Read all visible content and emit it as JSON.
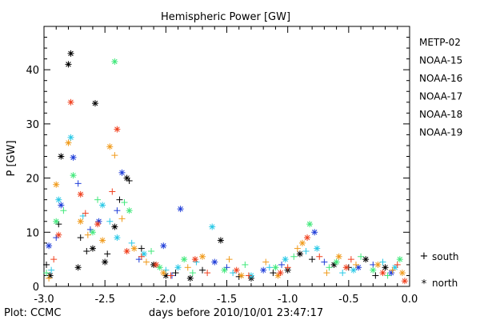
{
  "chart_data": {
    "type": "scatter",
    "title": "Hemispheric Power [GW]",
    "xlabel": "days before 2010/10/01 23:47:17",
    "ylabel": "P [GW]",
    "credit": "Plot: CCMC",
    "xlim": [
      -3.0,
      0.0
    ],
    "ylim": [
      0,
      48
    ],
    "x_ticks": [
      -3.0,
      -2.5,
      -2.0,
      -1.5,
      -1.0,
      -0.5,
      0.0
    ],
    "x_tick_labels": [
      "-3.0",
      "-2.5",
      "-2.0",
      "-1.5",
      "-1.0",
      "-0.5",
      "0.0"
    ],
    "y_ticks": [
      0,
      10,
      20,
      30,
      40
    ],
    "y_tick_labels": [
      "0",
      "10",
      "20",
      "30",
      "40"
    ],
    "grid": false,
    "legend_position": "right",
    "hemisphere_legend": {
      "south_symbol": "+",
      "south_label": "south",
      "north_symbol": "*",
      "north_label": "north"
    },
    "series": [
      {
        "name": "METP-02",
        "color": "#000000",
        "north": [
          [
            -2.78,
            43.0
          ],
          [
            -2.8,
            41.0
          ],
          [
            -2.58,
            33.8
          ],
          [
            -2.86,
            24.0
          ],
          [
            -2.6,
            7.0
          ],
          [
            -2.42,
            11.0
          ],
          [
            -2.32,
            20.0
          ],
          [
            -2.1,
            4.0
          ],
          [
            -2.0,
            2.0
          ],
          [
            -1.8,
            1.5
          ],
          [
            -1.55,
            8.5
          ],
          [
            -1.3,
            1.5
          ],
          [
            -1.0,
            3.0
          ],
          [
            -0.9,
            6.0
          ],
          [
            -0.62,
            4.0
          ],
          [
            -0.36,
            5.0
          ],
          [
            -0.2,
            3.5
          ],
          [
            -2.95,
            2.0
          ],
          [
            -2.72,
            3.5
          ],
          [
            -2.5,
            4.5
          ]
        ],
        "south": [
          [
            -2.88,
            11.5
          ],
          [
            -2.7,
            9.0
          ],
          [
            -2.48,
            6.0
          ],
          [
            -2.3,
            19.5
          ],
          [
            -2.2,
            7.0
          ],
          [
            -1.92,
            2.5
          ],
          [
            -1.7,
            3.0
          ],
          [
            -1.4,
            1.8
          ],
          [
            -1.12,
            2.5
          ],
          [
            -0.8,
            5.0
          ],
          [
            -0.5,
            3.5
          ],
          [
            -0.28,
            2.0
          ],
          [
            -2.98,
            4.0
          ],
          [
            -2.65,
            6.5
          ],
          [
            -2.38,
            16.0
          ]
        ]
      },
      {
        "name": "NOAA-15",
        "color": "#1e3cd8",
        "north": [
          [
            -2.86,
            15.0
          ],
          [
            -2.76,
            23.8
          ],
          [
            -2.36,
            21.0
          ],
          [
            -2.02,
            7.5
          ],
          [
            -1.88,
            14.3
          ],
          [
            -1.6,
            4.5
          ],
          [
            -1.2,
            3.0
          ],
          [
            -0.78,
            10.0
          ],
          [
            -0.42,
            3.5
          ],
          [
            -0.15,
            2.5
          ],
          [
            -2.96,
            7.5
          ],
          [
            -2.55,
            12.0
          ]
        ],
        "south": [
          [
            -2.9,
            9.0
          ],
          [
            -2.72,
            19.0
          ],
          [
            -2.4,
            14.0
          ],
          [
            -2.22,
            5.0
          ],
          [
            -1.95,
            2.0
          ],
          [
            -1.5,
            3.5
          ],
          [
            -1.05,
            4.0
          ],
          [
            -0.7,
            4.5
          ],
          [
            -0.3,
            4.0
          ],
          [
            -2.62,
            10.5
          ]
        ]
      },
      {
        "name": "NOAA-16",
        "color": "#28c8e6",
        "north": [
          [
            -2.78,
            27.5
          ],
          [
            -2.88,
            16.0
          ],
          [
            -2.52,
            15.0
          ],
          [
            -2.4,
            9.0
          ],
          [
            -2.18,
            6.0
          ],
          [
            -1.9,
            3.5
          ],
          [
            -1.62,
            11.0
          ],
          [
            -1.3,
            2.0
          ],
          [
            -1.02,
            5.0
          ],
          [
            -0.76,
            7.0
          ],
          [
            -0.46,
            3.0
          ],
          [
            -0.12,
            3.5
          ]
        ],
        "south": [
          [
            -2.94,
            3.0
          ],
          [
            -2.68,
            13.0
          ],
          [
            -2.46,
            12.0
          ],
          [
            -2.28,
            8.0
          ],
          [
            -2.0,
            3.0
          ],
          [
            -1.75,
            4.5
          ],
          [
            -1.45,
            2.5
          ],
          [
            -1.15,
            3.5
          ],
          [
            -0.85,
            6.5
          ],
          [
            -0.55,
            2.5
          ],
          [
            -0.22,
            4.5
          ]
        ]
      },
      {
        "name": "NOAA-17",
        "color": "#40e87a",
        "north": [
          [
            -2.42,
            41.5
          ],
          [
            -2.76,
            20.5
          ],
          [
            -2.9,
            12.0
          ],
          [
            -2.6,
            10.0
          ],
          [
            -2.3,
            14.0
          ],
          [
            -2.05,
            3.5
          ],
          [
            -1.85,
            5.0
          ],
          [
            -1.52,
            3.0
          ],
          [
            -1.1,
            3.5
          ],
          [
            -0.82,
            11.5
          ],
          [
            -0.6,
            4.5
          ],
          [
            -0.3,
            3.0
          ],
          [
            -0.08,
            5.0
          ]
        ],
        "south": [
          [
            -2.84,
            14.0
          ],
          [
            -2.56,
            16.0
          ],
          [
            -2.34,
            15.5
          ],
          [
            -2.12,
            6.5
          ],
          [
            -1.78,
            2.5
          ],
          [
            -1.35,
            4.0
          ],
          [
            -0.95,
            5.5
          ],
          [
            -0.66,
            3.5
          ],
          [
            -0.4,
            5.5
          ],
          [
            -0.18,
            2.0
          ],
          [
            -2.98,
            2.5
          ]
        ]
      },
      {
        "name": "NOAA-18",
        "color": "#f09a1a",
        "north": [
          [
            -2.8,
            26.5
          ],
          [
            -2.9,
            18.8
          ],
          [
            -2.46,
            25.8
          ],
          [
            -2.7,
            12.0
          ],
          [
            -2.52,
            8.5
          ],
          [
            -2.26,
            7.0
          ],
          [
            -2.02,
            2.5
          ],
          [
            -1.7,
            5.5
          ],
          [
            -1.38,
            2.0
          ],
          [
            -1.08,
            2.0
          ],
          [
            -0.88,
            8.0
          ],
          [
            -0.58,
            5.5
          ],
          [
            -0.26,
            4.0
          ],
          [
            -0.06,
            2.5
          ]
        ],
        "south": [
          [
            -2.42,
            24.2
          ],
          [
            -2.96,
            1.5
          ],
          [
            -2.64,
            9.5
          ],
          [
            -2.36,
            12.5
          ],
          [
            -2.16,
            4.5
          ],
          [
            -1.82,
            3.5
          ],
          [
            -1.48,
            5.0
          ],
          [
            -1.18,
            4.5
          ],
          [
            -0.92,
            7.0
          ],
          [
            -0.68,
            2.5
          ],
          [
            -0.44,
            4.0
          ],
          [
            -0.14,
            3.0
          ]
        ]
      },
      {
        "name": "NOAA-19",
        "color": "#f0401e",
        "north": [
          [
            -2.78,
            34.0
          ],
          [
            -2.4,
            29.0
          ],
          [
            -2.7,
            17.0
          ],
          [
            -2.88,
            9.5
          ],
          [
            -2.56,
            11.5
          ],
          [
            -2.32,
            6.5
          ],
          [
            -2.08,
            4.0
          ],
          [
            -1.76,
            5.0
          ],
          [
            -1.42,
            3.0
          ],
          [
            -1.06,
            2.5
          ],
          [
            -0.84,
            9.0
          ],
          [
            -0.52,
            3.5
          ],
          [
            -0.22,
            2.5
          ],
          [
            -0.04,
            1.0
          ]
        ],
        "south": [
          [
            -2.92,
            5.0
          ],
          [
            -2.66,
            13.5
          ],
          [
            -2.44,
            17.5
          ],
          [
            -2.2,
            5.5
          ],
          [
            -1.96,
            2.0
          ],
          [
            -1.66,
            2.5
          ],
          [
            -1.32,
            2.0
          ],
          [
            -1.0,
            3.5
          ],
          [
            -0.74,
            5.5
          ],
          [
            -0.48,
            5.0
          ],
          [
            -0.1,
            4.0
          ]
        ]
      }
    ]
  }
}
